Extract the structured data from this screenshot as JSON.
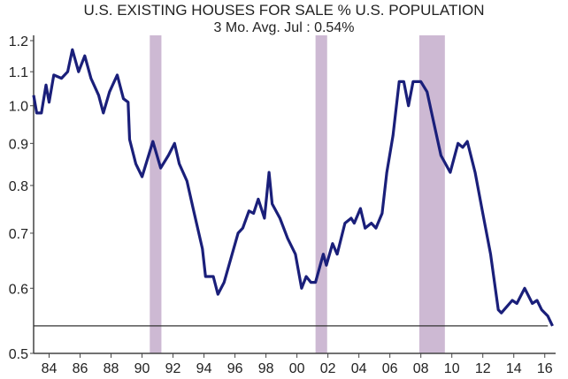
{
  "chart_data": {
    "type": "line",
    "title": "U.S. EXISTING HOUSES FOR SALE % U.S. POPULATION",
    "subtitle": "3 Mo. Avg.   Jul : 0.54%",
    "xlabel": "",
    "ylabel": "",
    "y_scale": "log",
    "xlim": [
      1983,
      2016.7
    ],
    "ylim": [
      0.5,
      1.2
    ],
    "y_ticks": [
      0.5,
      0.6,
      0.7,
      0.8,
      0.9,
      1.0,
      1.1,
      1.2
    ],
    "y_tick_labels": [
      "0.5",
      "0.6",
      "0.7",
      "0.8",
      "0.9",
      "1.0",
      "1.1",
      "1.2"
    ],
    "x_ticks": [
      1984,
      1986,
      1988,
      1990,
      1992,
      1994,
      1996,
      1998,
      2000,
      2002,
      2004,
      2006,
      2008,
      2010,
      2012,
      2014,
      2016
    ],
    "x_tick_labels": [
      "84",
      "86",
      "88",
      "90",
      "92",
      "94",
      "96",
      "98",
      "00",
      "02",
      "04",
      "06",
      "08",
      "10",
      "12",
      "14",
      "16"
    ],
    "reference_line": 0.54,
    "recessions": [
      [
        1990.5,
        1991.25
      ],
      [
        2001.2,
        2001.95
      ],
      [
        2007.9,
        2009.55
      ]
    ],
    "colors": {
      "line": "#1a1f7a",
      "recession": "#cdb9d3",
      "axis": "#444444",
      "reference": "#333333"
    },
    "series": [
      {
        "name": "Existing houses for sale % population (3 Mo. Avg.)",
        "x": [
          1983.0,
          1983.2,
          1983.5,
          1983.8,
          1984.0,
          1984.3,
          1984.8,
          1985.2,
          1985.5,
          1985.9,
          1986.3,
          1986.7,
          1987.2,
          1987.5,
          1987.9,
          1988.4,
          1988.8,
          1989.1,
          1989.2,
          1989.6,
          1990.0,
          1990.7,
          1991.2,
          1991.7,
          1992.1,
          1992.4,
          1992.9,
          1993.3,
          1993.9,
          1994.1,
          1994.6,
          1994.9,
          1995.3,
          1996.2,
          1996.5,
          1996.9,
          1997.2,
          1997.5,
          1997.9,
          1998.2,
          1998.4,
          1998.9,
          1999.4,
          1999.9,
          2000.3,
          2000.6,
          2000.9,
          2001.2,
          2001.7,
          2001.9,
          2002.3,
          2002.6,
          2003.1,
          2003.5,
          2003.7,
          2004.1,
          2004.4,
          2004.8,
          2005.1,
          2005.5,
          2005.8,
          2006.2,
          2006.6,
          2006.9,
          2007.2,
          2007.5,
          2008.0,
          2008.4,
          2008.8,
          2009.3,
          2009.9,
          2010.4,
          2010.7,
          2011.0,
          2011.5,
          2012.0,
          2012.5,
          2013.0,
          2013.2,
          2013.9,
          2014.2,
          2014.7,
          2015.2,
          2015.5,
          2015.8,
          2016.2,
          2016.5
        ],
        "y": [
          1.03,
          0.98,
          0.98,
          1.06,
          1.01,
          1.09,
          1.08,
          1.1,
          1.17,
          1.1,
          1.15,
          1.08,
          1.03,
          0.98,
          1.04,
          1.09,
          1.02,
          1.01,
          0.91,
          0.85,
          0.82,
          0.905,
          0.84,
          0.87,
          0.9,
          0.85,
          0.81,
          0.75,
          0.67,
          0.62,
          0.62,
          0.59,
          0.61,
          0.7,
          0.71,
          0.745,
          0.74,
          0.77,
          0.73,
          0.83,
          0.76,
          0.73,
          0.69,
          0.66,
          0.6,
          0.62,
          0.61,
          0.61,
          0.66,
          0.64,
          0.68,
          0.66,
          0.72,
          0.73,
          0.72,
          0.75,
          0.71,
          0.72,
          0.71,
          0.74,
          0.83,
          0.92,
          1.07,
          1.07,
          1.0,
          1.07,
          1.07,
          1.04,
          0.96,
          0.87,
          0.83,
          0.9,
          0.89,
          0.905,
          0.83,
          0.74,
          0.66,
          0.565,
          0.56,
          0.58,
          0.575,
          0.6,
          0.575,
          0.58,
          0.565,
          0.555,
          0.54
        ]
      }
    ]
  }
}
